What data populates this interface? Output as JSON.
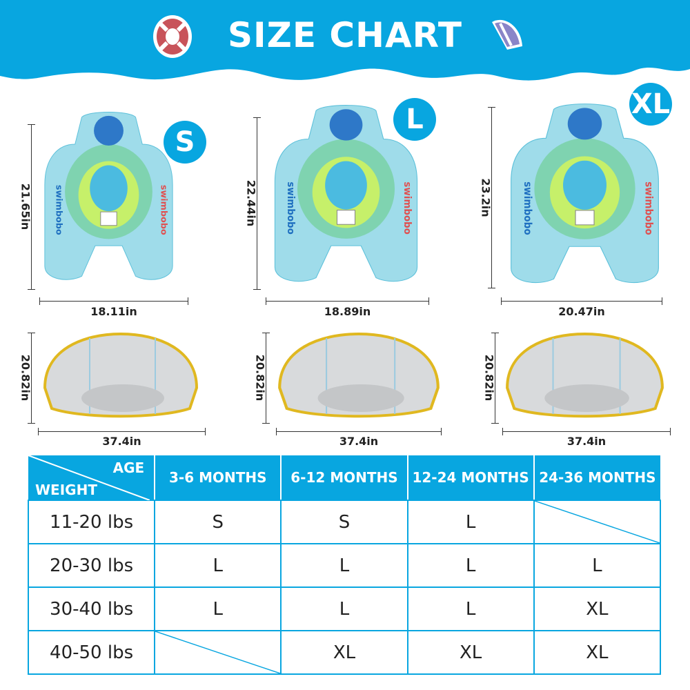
{
  "header": {
    "title": "SIZE CHART",
    "colors": {
      "banner": "#08a6e0",
      "lifebuoy": "#c8535a",
      "umbrella": "#8a85c8"
    }
  },
  "floats": [
    {
      "size": "S",
      "height": "21.65in",
      "width": "18.11in"
    },
    {
      "size": "L",
      "height": "22.44in",
      "width": "18.89in"
    },
    {
      "size": "XL",
      "height": "23.2in",
      "width": "20.47in"
    }
  ],
  "canopies": [
    {
      "height": "20.82in",
      "width": "37.4in"
    },
    {
      "height": "20.82in",
      "width": "37.4in"
    },
    {
      "height": "20.82in",
      "width": "37.4in"
    }
  ],
  "brand": "swimbobo",
  "table": {
    "corner_top": "AGE",
    "corner_bottom": "WEIGHT",
    "columns": [
      "3-6 MONTHS",
      "6-12 MONTHS",
      "12-24 MONTHS",
      "24-36 MONTHS"
    ],
    "rows": [
      {
        "weight": "11-20 lbs",
        "cells": [
          "S",
          "S",
          "L",
          ""
        ]
      },
      {
        "weight": "20-30 lbs",
        "cells": [
          "L",
          "L",
          "L",
          "L"
        ]
      },
      {
        "weight": "30-40 lbs",
        "cells": [
          "L",
          "L",
          "L",
          "XL"
        ]
      },
      {
        "weight": "40-50 lbs",
        "cells": [
          "",
          "XL",
          "XL",
          "XL"
        ]
      }
    ]
  }
}
